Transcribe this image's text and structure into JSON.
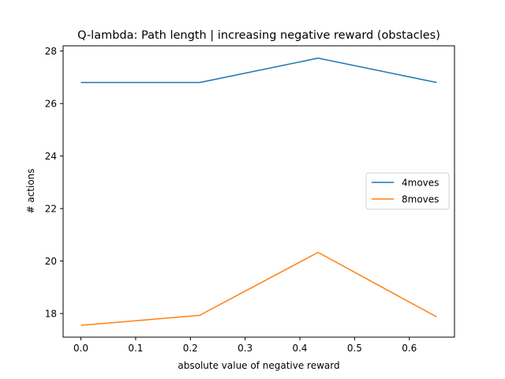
{
  "chart_data": {
    "type": "line",
    "title": "Q-lambda: Path length | increasing negative reward (obstacles)",
    "xlabel": "absolute value of negative reward",
    "ylabel": "# actions",
    "x": [
      0.0,
      0.2167,
      0.4333,
      0.65
    ],
    "xlim": [
      -0.0325,
      0.6825
    ],
    "ylim": [
      17.1,
      28.2
    ],
    "xticks": [
      0.0,
      0.1,
      0.2,
      0.3,
      0.4,
      0.5,
      0.6
    ],
    "xtick_labels": [
      "0.0",
      "0.1",
      "0.2",
      "0.3",
      "0.4",
      "0.5",
      "0.6"
    ],
    "yticks": [
      18,
      20,
      22,
      24,
      26,
      28
    ],
    "ytick_labels": [
      "18",
      "20",
      "22",
      "24",
      "26",
      "28"
    ],
    "grid": false,
    "legend_position": "center-right",
    "series": [
      {
        "name": "4moves",
        "color": "#1f77b4",
        "values": [
          26.8,
          26.8,
          27.73,
          26.8
        ]
      },
      {
        "name": "8moves",
        "color": "#ff7f0e",
        "values": [
          17.55,
          17.93,
          20.33,
          17.87
        ]
      }
    ]
  }
}
